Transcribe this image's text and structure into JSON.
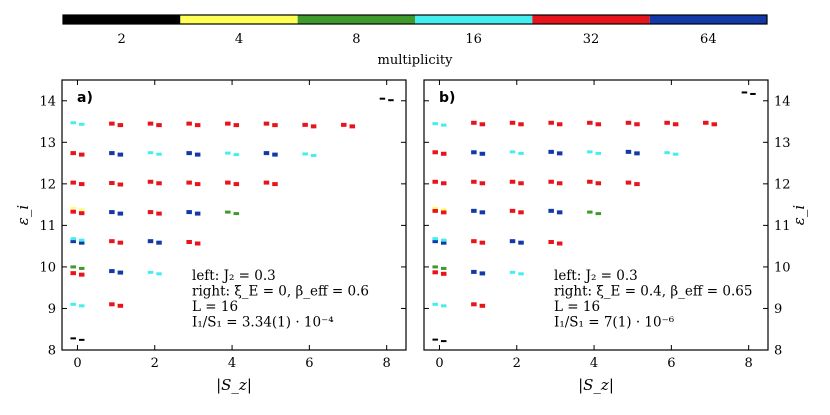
{
  "colorbar": {
    "label": "multiplicity",
    "entries": [
      {
        "value": "2",
        "color": "#000000"
      },
      {
        "value": "4",
        "color": "#ffff55"
      },
      {
        "value": "8",
        "color": "#3f9a2c"
      },
      {
        "value": "16",
        "color": "#44eeee"
      },
      {
        "value": "32",
        "color": "#e8141c"
      },
      {
        "value": "64",
        "color": "#1338a8"
      }
    ]
  },
  "chart_data": [
    {
      "type": "scatter",
      "panel": "a)",
      "xlabel": "|S_z|",
      "ylabel": "ε_i",
      "xlim": [
        -0.4,
        8.5
      ],
      "ylim": [
        8,
        14.5
      ],
      "xticks": [
        "0",
        "2",
        "4",
        "6",
        "8"
      ],
      "yticks": [
        "8",
        "9",
        "10",
        "11",
        "12",
        "13",
        "14"
      ],
      "annotation": [
        "left:  J₂ = 0.3",
        "right:  ξ_E = 0, β_eff = 0.6",
        "L = 16",
        "I₁/S₁ = 3.34(1) · 10⁻⁴"
      ],
      "levels": [
        {
          "sz": 0,
          "e": 8.28,
          "m": 2
        },
        {
          "sz": 0,
          "e": 9.1,
          "m": 16
        },
        {
          "sz": 0,
          "e": 9.85,
          "m": 32
        },
        {
          "sz": 0,
          "e": 10.0,
          "m": 8
        },
        {
          "sz": 0,
          "e": 10.62,
          "m": 64
        },
        {
          "sz": 0,
          "e": 10.68,
          "m": 16
        },
        {
          "sz": 0,
          "e": 11.33,
          "m": 32
        },
        {
          "sz": 0,
          "e": 11.42,
          "m": 4
        },
        {
          "sz": 0,
          "e": 12.03,
          "m": 32
        },
        {
          "sz": 0,
          "e": 12.74,
          "m": 32
        },
        {
          "sz": 0,
          "e": 13.47,
          "m": 16
        },
        {
          "sz": 1,
          "e": 9.1,
          "m": 32
        },
        {
          "sz": 1,
          "e": 9.9,
          "m": 64
        },
        {
          "sz": 1,
          "e": 10.62,
          "m": 32
        },
        {
          "sz": 1,
          "e": 11.32,
          "m": 64
        },
        {
          "sz": 1,
          "e": 12.02,
          "m": 32
        },
        {
          "sz": 1,
          "e": 12.74,
          "m": 64
        },
        {
          "sz": 1,
          "e": 13.45,
          "m": 32
        },
        {
          "sz": 2,
          "e": 9.87,
          "m": 16
        },
        {
          "sz": 2,
          "e": 10.62,
          "m": 64
        },
        {
          "sz": 2,
          "e": 11.32,
          "m": 32
        },
        {
          "sz": 2,
          "e": 12.05,
          "m": 32
        },
        {
          "sz": 2,
          "e": 12.75,
          "m": 16
        },
        {
          "sz": 2,
          "e": 13.45,
          "m": 32
        },
        {
          "sz": 3,
          "e": 10.6,
          "m": 32
        },
        {
          "sz": 3,
          "e": 11.32,
          "m": 64
        },
        {
          "sz": 3,
          "e": 12.03,
          "m": 32
        },
        {
          "sz": 3,
          "e": 12.74,
          "m": 64
        },
        {
          "sz": 3,
          "e": 13.45,
          "m": 32
        },
        {
          "sz": 4,
          "e": 11.32,
          "m": 8
        },
        {
          "sz": 4,
          "e": 12.03,
          "m": 32
        },
        {
          "sz": 4,
          "e": 12.74,
          "m": 16
        },
        {
          "sz": 4,
          "e": 13.45,
          "m": 32
        },
        {
          "sz": 5,
          "e": 12.03,
          "m": 32
        },
        {
          "sz": 5,
          "e": 12.74,
          "m": 64
        },
        {
          "sz": 5,
          "e": 13.45,
          "m": 32
        },
        {
          "sz": 6,
          "e": 12.72,
          "m": 16
        },
        {
          "sz": 6,
          "e": 13.42,
          "m": 32
        },
        {
          "sz": 7,
          "e": 13.42,
          "m": 32
        },
        {
          "sz": 8,
          "e": 14.05,
          "m": 2
        }
      ]
    },
    {
      "type": "scatter",
      "panel": "b)",
      "xlabel": "|S_z|",
      "ylabel": "ε_i",
      "xlim": [
        -0.4,
        8.5
      ],
      "ylim": [
        8,
        14.5
      ],
      "xticks": [
        "0",
        "2",
        "4",
        "6",
        "8"
      ],
      "yticks": [
        "8",
        "9",
        "10",
        "11",
        "12",
        "13",
        "14"
      ],
      "annotation": [
        "left:  J₂ = 0.3",
        "right:  ξ_E = 0.4, β_eff = 0.65",
        "L = 16",
        "I₁/S₁ = 7(1) · 10⁻⁶"
      ],
      "levels": [
        {
          "sz": 0,
          "e": 8.25,
          "m": 2
        },
        {
          "sz": 0,
          "e": 9.1,
          "m": 16
        },
        {
          "sz": 0,
          "e": 9.87,
          "m": 32
        },
        {
          "sz": 0,
          "e": 10.0,
          "m": 8
        },
        {
          "sz": 0,
          "e": 10.62,
          "m": 64
        },
        {
          "sz": 0,
          "e": 10.68,
          "m": 16
        },
        {
          "sz": 0,
          "e": 11.35,
          "m": 32
        },
        {
          "sz": 0,
          "e": 11.42,
          "m": 4
        },
        {
          "sz": 0,
          "e": 12.05,
          "m": 32
        },
        {
          "sz": 0,
          "e": 12.76,
          "m": 32
        },
        {
          "sz": 0,
          "e": 13.45,
          "m": 16
        },
        {
          "sz": 1,
          "e": 9.1,
          "m": 32
        },
        {
          "sz": 1,
          "e": 9.88,
          "m": 64
        },
        {
          "sz": 1,
          "e": 10.62,
          "m": 32
        },
        {
          "sz": 1,
          "e": 11.35,
          "m": 64
        },
        {
          "sz": 1,
          "e": 12.05,
          "m": 32
        },
        {
          "sz": 1,
          "e": 12.76,
          "m": 64
        },
        {
          "sz": 1,
          "e": 13.47,
          "m": 32
        },
        {
          "sz": 2,
          "e": 9.87,
          "m": 16
        },
        {
          "sz": 2,
          "e": 10.62,
          "m": 64
        },
        {
          "sz": 2,
          "e": 11.35,
          "m": 32
        },
        {
          "sz": 2,
          "e": 12.05,
          "m": 32
        },
        {
          "sz": 2,
          "e": 12.77,
          "m": 16
        },
        {
          "sz": 2,
          "e": 13.47,
          "m": 32
        },
        {
          "sz": 3,
          "e": 10.6,
          "m": 32
        },
        {
          "sz": 3,
          "e": 11.35,
          "m": 64
        },
        {
          "sz": 3,
          "e": 12.05,
          "m": 32
        },
        {
          "sz": 3,
          "e": 12.77,
          "m": 64
        },
        {
          "sz": 3,
          "e": 13.47,
          "m": 32
        },
        {
          "sz": 4,
          "e": 11.32,
          "m": 8
        },
        {
          "sz": 4,
          "e": 12.05,
          "m": 32
        },
        {
          "sz": 4,
          "e": 12.77,
          "m": 16
        },
        {
          "sz": 4,
          "e": 13.47,
          "m": 32
        },
        {
          "sz": 5,
          "e": 12.03,
          "m": 32
        },
        {
          "sz": 5,
          "e": 12.77,
          "m": 64
        },
        {
          "sz": 5,
          "e": 13.47,
          "m": 32
        },
        {
          "sz": 6,
          "e": 12.75,
          "m": 16
        },
        {
          "sz": 6,
          "e": 13.47,
          "m": 32
        },
        {
          "sz": 7,
          "e": 13.47,
          "m": 32
        },
        {
          "sz": 8,
          "e": 14.2,
          "m": 2
        }
      ]
    }
  ]
}
